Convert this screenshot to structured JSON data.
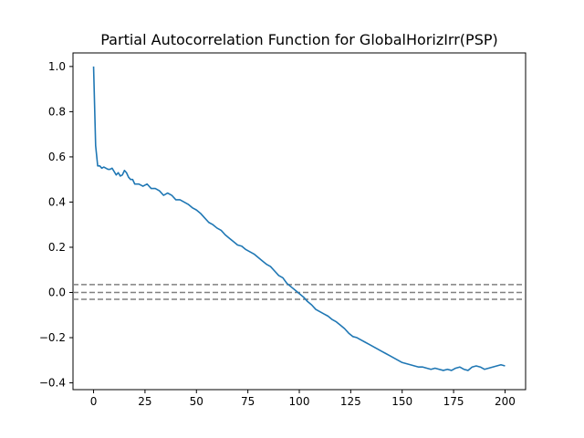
{
  "chart_data": {
    "type": "line",
    "title": "Partial Autocorrelation Function for GlobalHorizIrr(PSP)",
    "xlabel": "",
    "ylabel": "",
    "xlim": [
      -10,
      210
    ],
    "ylim": [
      -0.43,
      1.06
    ],
    "x_ticks": [
      0,
      25,
      50,
      75,
      100,
      125,
      150,
      175,
      200
    ],
    "x_tick_labels": [
      "0",
      "25",
      "50",
      "75",
      "100",
      "125",
      "150",
      "175",
      "200"
    ],
    "y_ticks": [
      -0.4,
      -0.2,
      0.0,
      0.2,
      0.4,
      0.6,
      0.8,
      1.0
    ],
    "y_tick_labels": [
      "−0.4",
      "−0.2",
      "0.0",
      "0.2",
      "0.4",
      "0.6",
      "0.8",
      "1.0"
    ],
    "grid": false,
    "series": [
      {
        "color": "#1f77b4",
        "x": [
          0,
          1,
          2,
          3,
          4,
          5,
          6,
          7,
          8,
          9,
          10,
          11,
          12,
          13,
          14,
          15,
          16,
          17,
          18,
          19,
          20,
          22,
          24,
          26,
          28,
          30,
          32,
          34,
          36,
          38,
          40,
          42,
          44,
          46,
          48,
          50,
          52,
          54,
          56,
          58,
          60,
          62,
          64,
          66,
          68,
          70,
          72,
          74,
          76,
          78,
          80,
          82,
          84,
          86,
          88,
          90,
          92,
          94,
          96,
          98,
          100,
          102,
          104,
          106,
          108,
          110,
          112,
          114,
          116,
          118,
          120,
          122,
          124,
          126,
          128,
          130,
          132,
          134,
          136,
          138,
          140,
          142,
          144,
          146,
          148,
          150,
          152,
          154,
          156,
          158,
          160,
          162,
          164,
          166,
          168,
          170,
          172,
          174,
          176,
          178,
          180,
          182,
          184,
          186,
          188,
          190,
          192,
          194,
          196,
          198,
          200
        ],
        "values": [
          1.0,
          0.65,
          0.56,
          0.56,
          0.55,
          0.555,
          0.55,
          0.545,
          0.545,
          0.55,
          0.535,
          0.52,
          0.53,
          0.515,
          0.52,
          0.54,
          0.53,
          0.51,
          0.5,
          0.5,
          0.48,
          0.48,
          0.47,
          0.48,
          0.46,
          0.46,
          0.45,
          0.43,
          0.44,
          0.43,
          0.41,
          0.41,
          0.4,
          0.39,
          0.375,
          0.365,
          0.35,
          0.33,
          0.31,
          0.3,
          0.285,
          0.275,
          0.255,
          0.24,
          0.225,
          0.21,
          0.205,
          0.19,
          0.18,
          0.17,
          0.155,
          0.14,
          0.125,
          0.115,
          0.095,
          0.075,
          0.065,
          0.04,
          0.025,
          0.01,
          -0.005,
          -0.02,
          -0.04,
          -0.055,
          -0.075,
          -0.085,
          -0.095,
          -0.105,
          -0.12,
          -0.13,
          -0.145,
          -0.16,
          -0.18,
          -0.195,
          -0.2,
          -0.21,
          -0.22,
          -0.23,
          -0.24,
          -0.25,
          -0.26,
          -0.27,
          -0.28,
          -0.29,
          -0.3,
          -0.31,
          -0.315,
          -0.32,
          -0.325,
          -0.33,
          -0.33,
          -0.335,
          -0.34,
          -0.335,
          -0.34,
          -0.345,
          -0.34,
          -0.345,
          -0.335,
          -0.33,
          -0.34,
          -0.345,
          -0.33,
          -0.325,
          -0.33,
          -0.34,
          -0.335,
          -0.33,
          -0.325,
          -0.32,
          -0.325
        ]
      }
    ],
    "reference_lines": [
      {
        "y": 0.035,
        "color": "#808080",
        "style": "dashed"
      },
      {
        "y": 0.0,
        "color": "#808080",
        "style": "dashed"
      },
      {
        "y": -0.03,
        "color": "#808080",
        "style": "dashed"
      }
    ]
  }
}
